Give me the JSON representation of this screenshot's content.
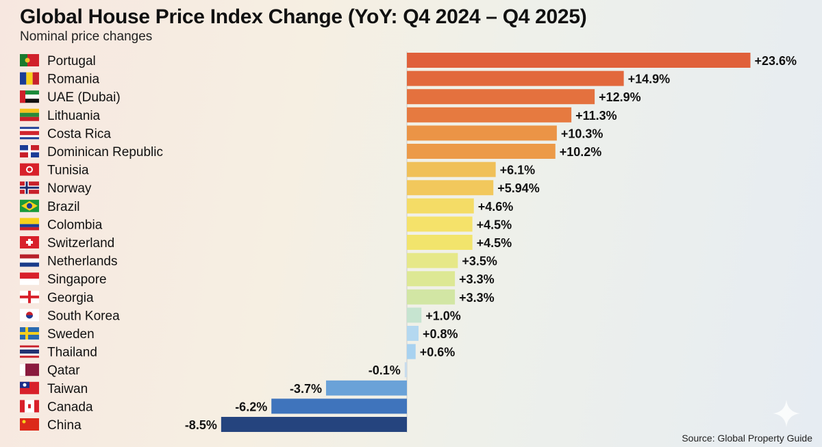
{
  "chart_data": {
    "type": "bar",
    "orientation": "horizontal",
    "title": "Global House Price Index Change (YoY: Q4 2024 – Q4 2025)",
    "subtitle": "Nominal price changes",
    "source": "Source: Global Property Guide",
    "categories": [
      "Portugal",
      "Romania",
      "UAE (Dubai)",
      "Lithuania",
      "Costa Rica",
      "Dominican Republic",
      "Tunisia",
      "Norway",
      "Brazil",
      "Colombia",
      "Switzerland",
      "Netherlands",
      "Singapore",
      "Georgia",
      "South Korea",
      "Sweden",
      "Thailand",
      "Qatar",
      "Taiwan",
      "Canada",
      "China"
    ],
    "values": [
      23.6,
      14.9,
      12.9,
      11.3,
      10.3,
      10.2,
      6.1,
      5.94,
      4.6,
      4.5,
      4.5,
      3.5,
      3.3,
      3.3,
      1.0,
      0.8,
      0.6,
      -0.1,
      -3.7,
      -6.2,
      -8.5
    ],
    "labels": [
      "+23.6%",
      "+14.9%",
      "+12.9%",
      "+11.3%",
      "+10.3%",
      "+10.2%",
      "+6.1%",
      "+5.94%",
      "+4.6%",
      "+4.5%",
      "+4.5%",
      "+3.5%",
      "+3.3%",
      "+3.3%",
      "+1.0%",
      "+0.8%",
      "+0.6%",
      "-0.1%",
      "-3.7%",
      "-6.2%",
      "-8.5%"
    ],
    "colors": [
      "#e0603a",
      "#e2683c",
      "#e4713e",
      "#e67a40",
      "#eb9446",
      "#ec9a48",
      "#f0c058",
      "#f2c85c",
      "#f4dc66",
      "#f5e26a",
      "#f2e46c",
      "#e6e888",
      "#dde894",
      "#d2e6a4",
      "#c6e4d0",
      "#b4d8f0",
      "#a8d2f0",
      "#c8dcec",
      "#6aa2d8",
      "#3f74bc",
      "#25447e"
    ],
    "flags": [
      "portugal",
      "romania",
      "uae",
      "lithuania",
      "costa-rica",
      "dominican-republic",
      "tunisia",
      "norway",
      "brazil",
      "colombia",
      "switzerland",
      "netherlands",
      "singapore",
      "georgia",
      "south-korea",
      "sweden",
      "thailand",
      "qatar",
      "taiwan",
      "canada",
      "china"
    ],
    "grid": false,
    "legend": "none"
  }
}
